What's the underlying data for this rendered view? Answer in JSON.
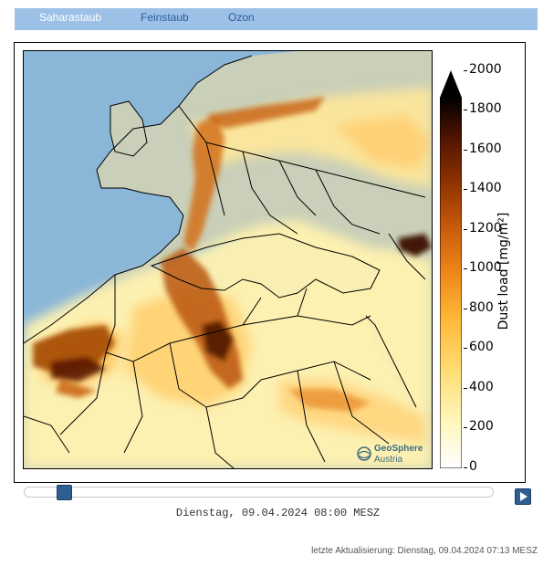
{
  "tabs": [
    {
      "label": "Saharastaub",
      "active": true
    },
    {
      "label": "Feinstaub",
      "active": false
    },
    {
      "label": "Ozon",
      "active": false
    }
  ],
  "map": {
    "logo_line1": "GeoSphere",
    "logo_line2": "Austria"
  },
  "colorbar": {
    "label": "Dust load [mg/m²]",
    "ticks": [
      "2000",
      "1800",
      "1600",
      "1400",
      "1200",
      "1000",
      "800",
      "600",
      "400",
      "200",
      "0"
    ],
    "colors": [
      "#ffffff",
      "#fff7c0",
      "#ffe07a",
      "#ffb93a",
      "#f08a1a",
      "#c85a0a",
      "#8a3000",
      "#4a1200",
      "#000000"
    ]
  },
  "slider": {
    "value_fraction": 0.08
  },
  "timestamp": "Dienstag, 09.04.2024 08:00 MESZ",
  "updated": "letzte Aktualisierung: Dienstag, 09.04.2024 07:13 MESZ",
  "icons": {
    "play": "play-icon",
    "logo": "geosphere-logo-icon"
  }
}
